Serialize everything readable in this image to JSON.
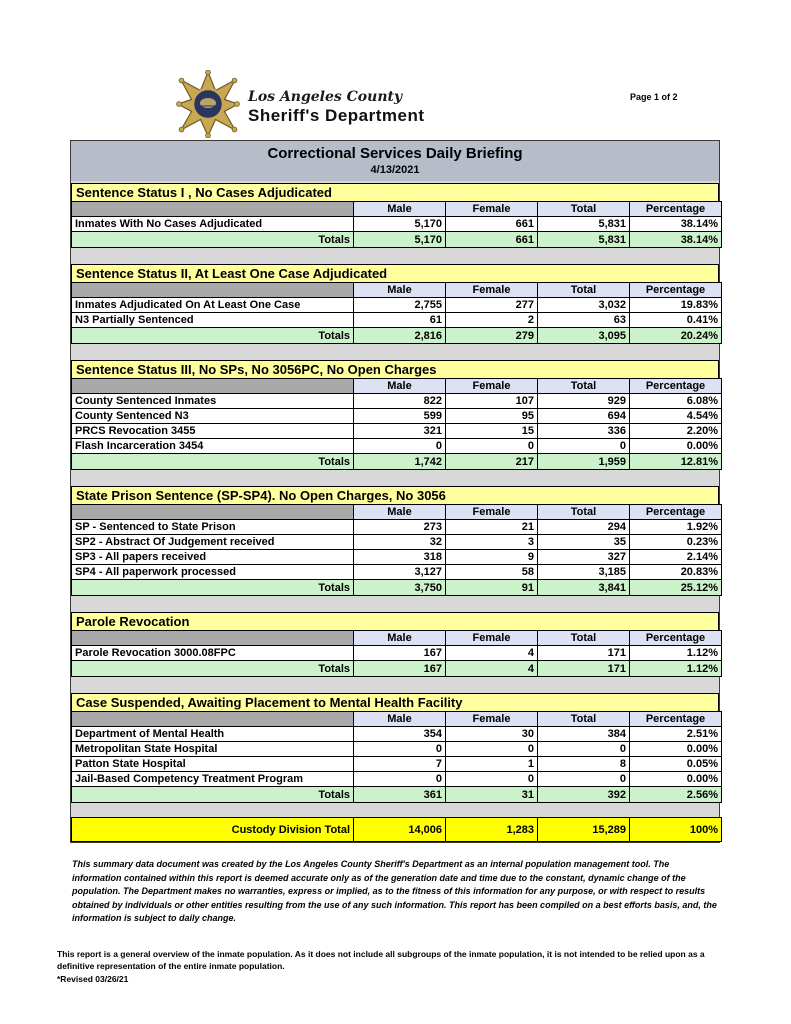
{
  "page": {
    "page_label": "Page 1 of 2"
  },
  "logo": {
    "county": "Los Angeles County",
    "department": "Sheriff's Department"
  },
  "report": {
    "title": "Correctional Services Daily Briefing",
    "date": "4/13/2021",
    "columns": [
      "Male",
      "Female",
      "Total",
      "Percentage"
    ],
    "totals_label": "Totals",
    "sections": [
      {
        "title": "Sentence Status I , No Cases Adjudicated",
        "rows": [
          {
            "label": "Inmates With No Cases Adjudicated",
            "values": [
              "5,170",
              "661",
              "5,831",
              "38.14%"
            ]
          }
        ],
        "totals": [
          "5,170",
          "661",
          "5,831",
          "38.14%"
        ]
      },
      {
        "title": "Sentence Status II, At Least One Case Adjudicated",
        "rows": [
          {
            "label": "Inmates Adjudicated On At Least One Case",
            "values": [
              "2,755",
              "277",
              "3,032",
              "19.83%"
            ]
          },
          {
            "label": "N3 Partially Sentenced",
            "values": [
              "61",
              "2",
              "63",
              "0.41%"
            ]
          }
        ],
        "totals": [
          "2,816",
          "279",
          "3,095",
          "20.24%"
        ]
      },
      {
        "title": "Sentence Status III, No SPs, No 3056PC, No Open Charges",
        "rows": [
          {
            "label": "County Sentenced Inmates",
            "values": [
              "822",
              "107",
              "929",
              "6.08%"
            ]
          },
          {
            "label": "County Sentenced N3",
            "values": [
              "599",
              "95",
              "694",
              "4.54%"
            ]
          },
          {
            "label": "PRCS Revocation 3455",
            "values": [
              "321",
              "15",
              "336",
              "2.20%"
            ]
          },
          {
            "label": "Flash Incarceration 3454",
            "values": [
              "0",
              "0",
              "0",
              "0.00%"
            ]
          }
        ],
        "totals": [
          "1,742",
          "217",
          "1,959",
          "12.81%"
        ]
      },
      {
        "title": "State Prison Sentence (SP-SP4). No Open Charges, No 3056",
        "rows": [
          {
            "label": "SP - Sentenced to State Prison",
            "values": [
              "273",
              "21",
              "294",
              "1.92%"
            ]
          },
          {
            "label": "SP2 - Abstract Of Judgement received",
            "values": [
              "32",
              "3",
              "35",
              "0.23%"
            ]
          },
          {
            "label": "SP3 - All papers received",
            "values": [
              "318",
              "9",
              "327",
              "2.14%"
            ]
          },
          {
            "label": "SP4 - All paperwork processed",
            "values": [
              "3,127",
              "58",
              "3,185",
              "20.83%"
            ]
          }
        ],
        "totals": [
          "3,750",
          "91",
          "3,841",
          "25.12%"
        ]
      },
      {
        "title": "Parole Revocation",
        "rows": [
          {
            "label": "Parole Revocation 3000.08FPC",
            "values": [
              "167",
              "4",
              "171",
              "1.12%"
            ]
          }
        ],
        "totals": [
          "167",
          "4",
          "171",
          "1.12%"
        ]
      },
      {
        "title": "Case Suspended, Awaiting Placement to Mental Health Facility",
        "rows": [
          {
            "label": "Department of Mental Health",
            "values": [
              "354",
              "30",
              "384",
              "2.51%"
            ]
          },
          {
            "label": "Metropolitan State Hospital",
            "values": [
              "0",
              "0",
              "0",
              "0.00%"
            ]
          },
          {
            "label": "Patton State Hospital",
            "values": [
              "7",
              "1",
              "8",
              "0.05%"
            ]
          },
          {
            "label": "Jail-Based Competency Treatment Program",
            "values": [
              "0",
              "0",
              "0",
              "0.00%"
            ]
          }
        ],
        "totals": [
          "361",
          "31",
          "392",
          "2.56%"
        ]
      }
    ],
    "grand_total": {
      "label": "Custody Division Total",
      "values": [
        "14,006",
        "1,283",
        "15,289",
        "100%"
      ]
    }
  },
  "footer": {
    "disclaimer": "This summary data document was created by the Los Angeles County Sheriff's Department as an internal population management tool.  The information contained within this report is deemed accurate only as of the generation date and time due to the constant, dynamic change of the population.  The Department makes no warranties, express or implied, as to the fitness of this information for any purpose, or with respect to results obtained by individuals or other entities resulting from the use of any such information.  This report has been compiled on a best efforts basis, and, the information is subject to daily change.",
    "note": "This report is a general overview of the inmate population.  As it does not include all subgroups of the inmate population, it is not intended to be relied upon as a definitive representation of the entire inmate population.",
    "revised": "*Revised 03/26/21"
  },
  "colors": {
    "title_band": "#b6bdc9",
    "section_header": "#ffff9e",
    "column_header": "#dce2f3",
    "header_spacer": "#a9a9a9",
    "totals_row": "#ccf2cc",
    "grand_total_row": "#ffff00",
    "report_background": "#d8d8d8",
    "badge_gold": "#c9a852",
    "badge_navy": "#2a3560"
  }
}
